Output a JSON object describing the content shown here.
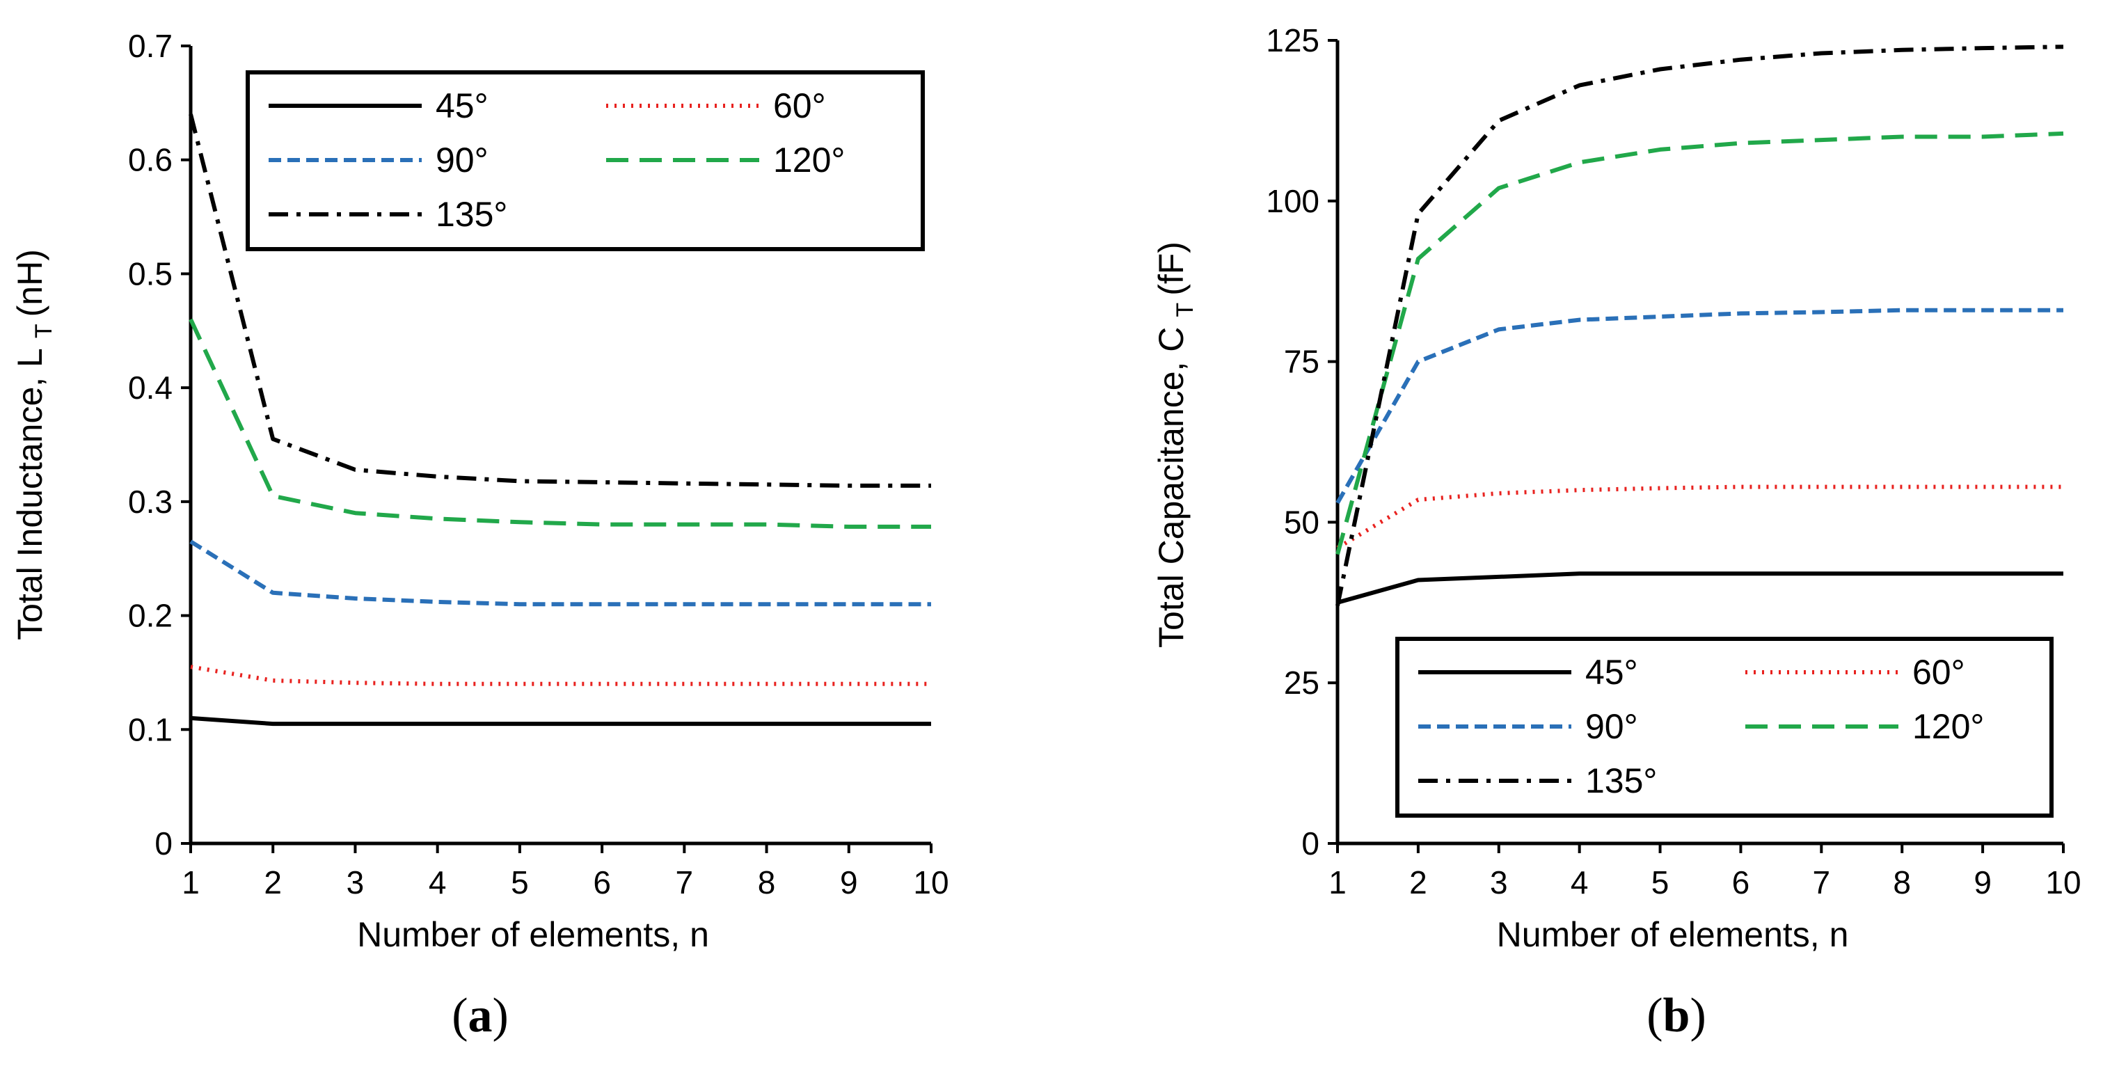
{
  "colors": {
    "s45": "#000000",
    "s60": "#e8221f",
    "s90": "#2a70b8",
    "s120": "#21a84a",
    "s135": "#000000"
  },
  "chart_data": [
    {
      "type": "line",
      "panel": "a",
      "caption_open": "(",
      "caption_letter": "a",
      "caption_close": ")",
      "xlabel": "Number of elements, n",
      "ylabel_main": "Total Inductance, L",
      "ylabel_sub": "T",
      "ylabel_unit": "(nH)",
      "xlim": [
        1,
        10
      ],
      "ylim": [
        0,
        0.7
      ],
      "x_ticks": [
        "1",
        "2",
        "3",
        "4",
        "5",
        "6",
        "7",
        "8",
        "9",
        "10"
      ],
      "y_ticks": [
        "0",
        "0.1",
        "0.2",
        "0.3",
        "0.4",
        "0.5",
        "0.6",
        "0.7"
      ],
      "legend_position": "top-right",
      "x": [
        1,
        2,
        3,
        4,
        5,
        6,
        7,
        8,
        9,
        10
      ],
      "series": [
        {
          "name": "45°",
          "style": "solid",
          "color_key": "s45",
          "values": [
            0.11,
            0.105,
            0.105,
            0.105,
            0.105,
            0.105,
            0.105,
            0.105,
            0.105,
            0.105
          ]
        },
        {
          "name": "60°",
          "style": "dotted",
          "color_key": "s60",
          "values": [
            0.155,
            0.143,
            0.141,
            0.14,
            0.14,
            0.14,
            0.14,
            0.14,
            0.14,
            0.14
          ]
        },
        {
          "name": "90°",
          "style": "dashed",
          "color_key": "s90",
          "values": [
            0.265,
            0.22,
            0.215,
            0.212,
            0.21,
            0.21,
            0.21,
            0.21,
            0.21,
            0.21
          ]
        },
        {
          "name": "120°",
          "style": "longdash",
          "color_key": "s120",
          "values": [
            0.46,
            0.305,
            0.29,
            0.285,
            0.282,
            0.28,
            0.28,
            0.28,
            0.278,
            0.278
          ]
        },
        {
          "name": "135°",
          "style": "dashdot",
          "color_key": "s135",
          "values": [
            0.64,
            0.355,
            0.328,
            0.322,
            0.318,
            0.317,
            0.316,
            0.315,
            0.314,
            0.314
          ]
        }
      ]
    },
    {
      "type": "line",
      "panel": "b",
      "caption_open": "(",
      "caption_letter": "b",
      "caption_close": ")",
      "xlabel": "Number of elements, n",
      "ylabel_main": "Total Capacitance, C",
      "ylabel_sub": "T",
      "ylabel_unit": "(fF)",
      "xlim": [
        1,
        10
      ],
      "ylim": [
        0,
        125
      ],
      "x_ticks": [
        "1",
        "2",
        "3",
        "4",
        "5",
        "6",
        "7",
        "8",
        "9",
        "10"
      ],
      "y_ticks": [
        "0",
        "25",
        "50",
        "75",
        "100",
        "125"
      ],
      "legend_position": "bottom-right",
      "x": [
        1,
        2,
        3,
        4,
        5,
        6,
        7,
        8,
        9,
        10
      ],
      "series": [
        {
          "name": "45°",
          "style": "solid",
          "color_key": "s45",
          "values": [
            37.5,
            41,
            41.5,
            42,
            42,
            42,
            42,
            42,
            42,
            42
          ]
        },
        {
          "name": "60°",
          "style": "dotted",
          "color_key": "s60",
          "values": [
            46,
            53.5,
            54.5,
            55,
            55.3,
            55.5,
            55.5,
            55.5,
            55.5,
            55.5
          ]
        },
        {
          "name": "90°",
          "style": "dashed",
          "color_key": "s90",
          "values": [
            53,
            75,
            80,
            81.5,
            82,
            82.5,
            82.7,
            83,
            83,
            83
          ]
        },
        {
          "name": "120°",
          "style": "longdash",
          "color_key": "s120",
          "values": [
            45,
            91,
            102,
            106,
            108,
            109,
            109.5,
            110,
            110,
            110.5
          ]
        },
        {
          "name": "135°",
          "style": "dashdot",
          "color_key": "s135",
          "values": [
            37,
            98,
            112.5,
            118,
            120.5,
            122,
            123,
            123.5,
            123.8,
            124
          ]
        }
      ]
    }
  ]
}
